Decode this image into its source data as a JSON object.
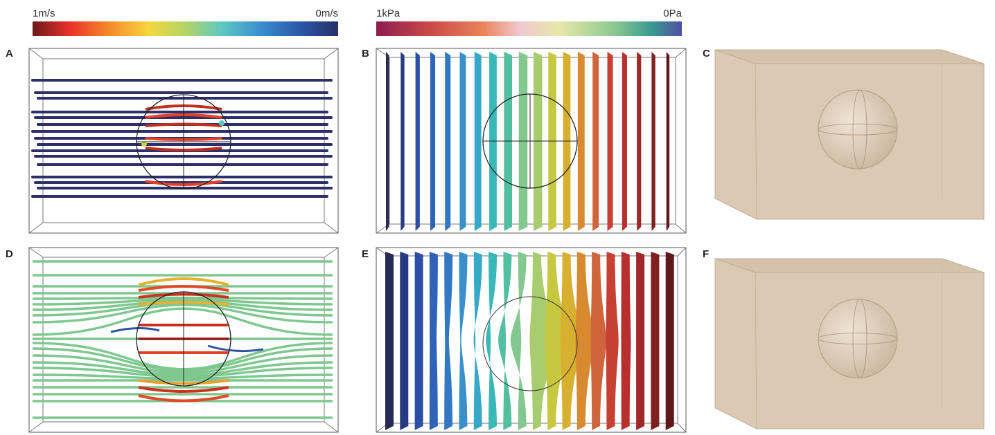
{
  "colorbars": [
    {
      "left_label": "1m/s",
      "right_label": "0m/s"
    },
    {
      "left_label": "1kPa",
      "right_label": "0Pa"
    }
  ],
  "panels": [
    {
      "label": "A"
    },
    {
      "label": "B"
    },
    {
      "label": "C"
    },
    {
      "label": "D"
    },
    {
      "label": "E"
    },
    {
      "label": "F"
    }
  ]
}
